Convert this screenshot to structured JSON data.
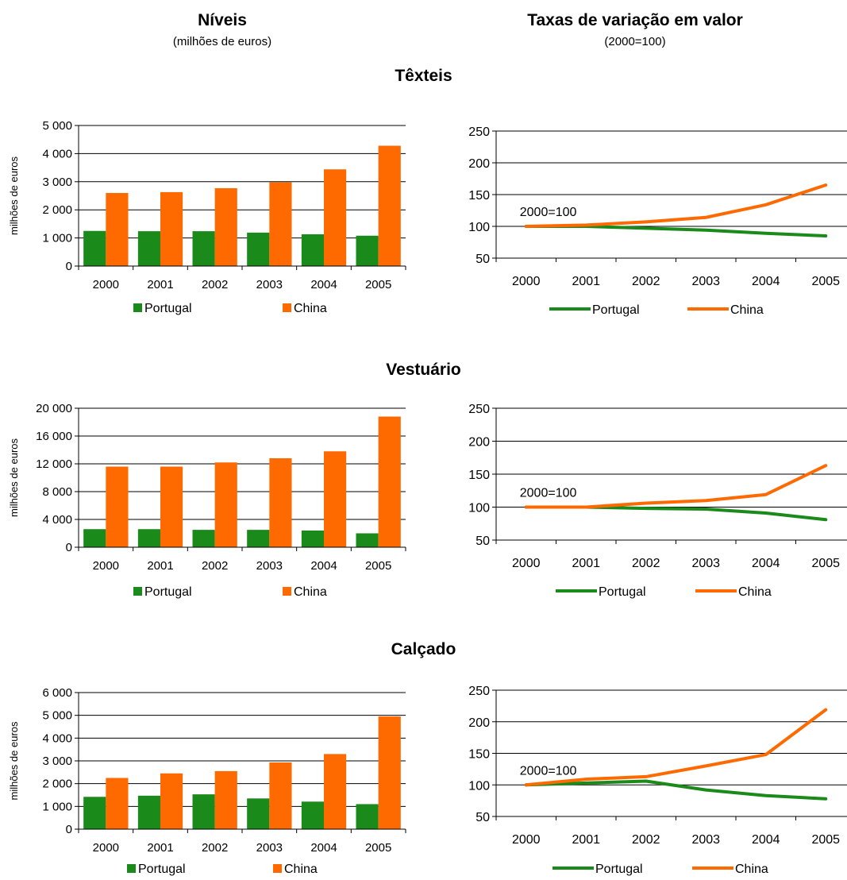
{
  "headers": {
    "left_title": "Níveis",
    "left_subtitle": "(milhões de euros)",
    "right_title": "Taxas de variação em valor",
    "right_subtitle": "(2000=100)"
  },
  "colors": {
    "portugal": "#1a8a1a",
    "china": "#ff6a00",
    "axis": "#000000"
  },
  "sections": [
    {
      "title": "Têxteis"
    },
    {
      "title": "Vestuário"
    },
    {
      "title": "Calçado"
    }
  ],
  "chart_data": [
    {
      "type": "bar",
      "section": "Têxteis",
      "categories": [
        "2000",
        "2001",
        "2002",
        "2003",
        "2004",
        "2005"
      ],
      "series": [
        {
          "name": "Portugal",
          "values": [
            1250,
            1240,
            1240,
            1190,
            1130,
            1080
          ]
        },
        {
          "name": "China",
          "values": [
            2600,
            2630,
            2770,
            2980,
            3440,
            4280
          ]
        }
      ],
      "ylabel": "milhões de euros",
      "ylim": [
        0,
        5000
      ],
      "yticks": [
        0,
        1000,
        2000,
        3000,
        4000,
        5000
      ],
      "ytick_labels": [
        "0",
        "1 000",
        "2 000",
        "3 000",
        "4 000",
        "5 000"
      ],
      "legend": "bottom"
    },
    {
      "type": "line",
      "section": "Têxteis",
      "categories": [
        "2000",
        "2001",
        "2002",
        "2003",
        "2004",
        "2005"
      ],
      "series": [
        {
          "name": "Portugal",
          "values": [
            100,
            100,
            97,
            94,
            89,
            85
          ]
        },
        {
          "name": "China",
          "values": [
            100,
            102,
            107,
            114,
            134,
            165
          ]
        }
      ],
      "annotation": "2000=100",
      "annotation_at": {
        "x": "2000",
        "y": 100
      },
      "ylim": [
        50,
        250
      ],
      "yticks": [
        50,
        100,
        150,
        200,
        250
      ],
      "ytick_labels": [
        "50",
        "100",
        "150",
        "200",
        "250"
      ],
      "grid": true,
      "legend": "bottom"
    },
    {
      "type": "bar",
      "section": "Vestuário",
      "categories": [
        "2000",
        "2001",
        "2002",
        "2003",
        "2004",
        "2005"
      ],
      "series": [
        {
          "name": "Portugal",
          "values": [
            2600,
            2600,
            2500,
            2500,
            2400,
            2000
          ]
        },
        {
          "name": "China",
          "values": [
            11600,
            11600,
            12200,
            12800,
            13800,
            18800
          ]
        }
      ],
      "ylabel": "milhões de euros",
      "ylim": [
        0,
        20000
      ],
      "yticks": [
        0,
        4000,
        8000,
        12000,
        16000,
        20000
      ],
      "ytick_labels": [
        "0",
        "4 000",
        "8 000",
        "12 000",
        "16 000",
        "20 000"
      ],
      "legend": "bottom"
    },
    {
      "type": "line",
      "section": "Vestuário",
      "categories": [
        "2000",
        "2001",
        "2002",
        "2003",
        "2004",
        "2005"
      ],
      "series": [
        {
          "name": "Portugal",
          "values": [
            100,
            100,
            98,
            97,
            91,
            81
          ]
        },
        {
          "name": "China",
          "values": [
            100,
            100,
            106,
            110,
            119,
            163
          ]
        }
      ],
      "annotation": "2000=100",
      "annotation_at": {
        "x": "2000",
        "y": 100
      },
      "ylim": [
        50,
        250
      ],
      "yticks": [
        50,
        100,
        150,
        200,
        250
      ],
      "ytick_labels": [
        "50",
        "100",
        "150",
        "200",
        "250"
      ],
      "grid": true,
      "legend": "bottom"
    },
    {
      "type": "bar",
      "section": "Calçado",
      "categories": [
        "2000",
        "2001",
        "2002",
        "2003",
        "2004",
        "2005"
      ],
      "series": [
        {
          "name": "Portugal",
          "values": [
            1420,
            1470,
            1530,
            1350,
            1210,
            1100
          ]
        },
        {
          "name": "China",
          "values": [
            2250,
            2450,
            2550,
            2930,
            3300,
            4950
          ]
        }
      ],
      "ylabel": "milhões de euros",
      "ylim": [
        0,
        6000
      ],
      "yticks": [
        0,
        1000,
        2000,
        3000,
        4000,
        5000,
        6000
      ],
      "ytick_labels": [
        "0",
        "1 000",
        "2 000",
        "3 000",
        "4 000",
        "5 000",
        "6 000"
      ],
      "legend": "bottom"
    },
    {
      "type": "line",
      "section": "Calçado",
      "categories": [
        "2000",
        "2001",
        "2002",
        "2003",
        "2004",
        "2005"
      ],
      "series": [
        {
          "name": "Portugal",
          "values": [
            100,
            103,
            106,
            92,
            83,
            78
          ]
        },
        {
          "name": "China",
          "values": [
            100,
            109,
            113,
            130,
            148,
            219
          ]
        }
      ],
      "annotation": "2000=100",
      "annotation_at": {
        "x": "2000",
        "y": 100
      },
      "ylim": [
        50,
        250
      ],
      "yticks": [
        50,
        100,
        150,
        200,
        250
      ],
      "ytick_labels": [
        "50",
        "100",
        "150",
        "200",
        "250"
      ],
      "grid": true,
      "legend": "bottom"
    }
  ]
}
